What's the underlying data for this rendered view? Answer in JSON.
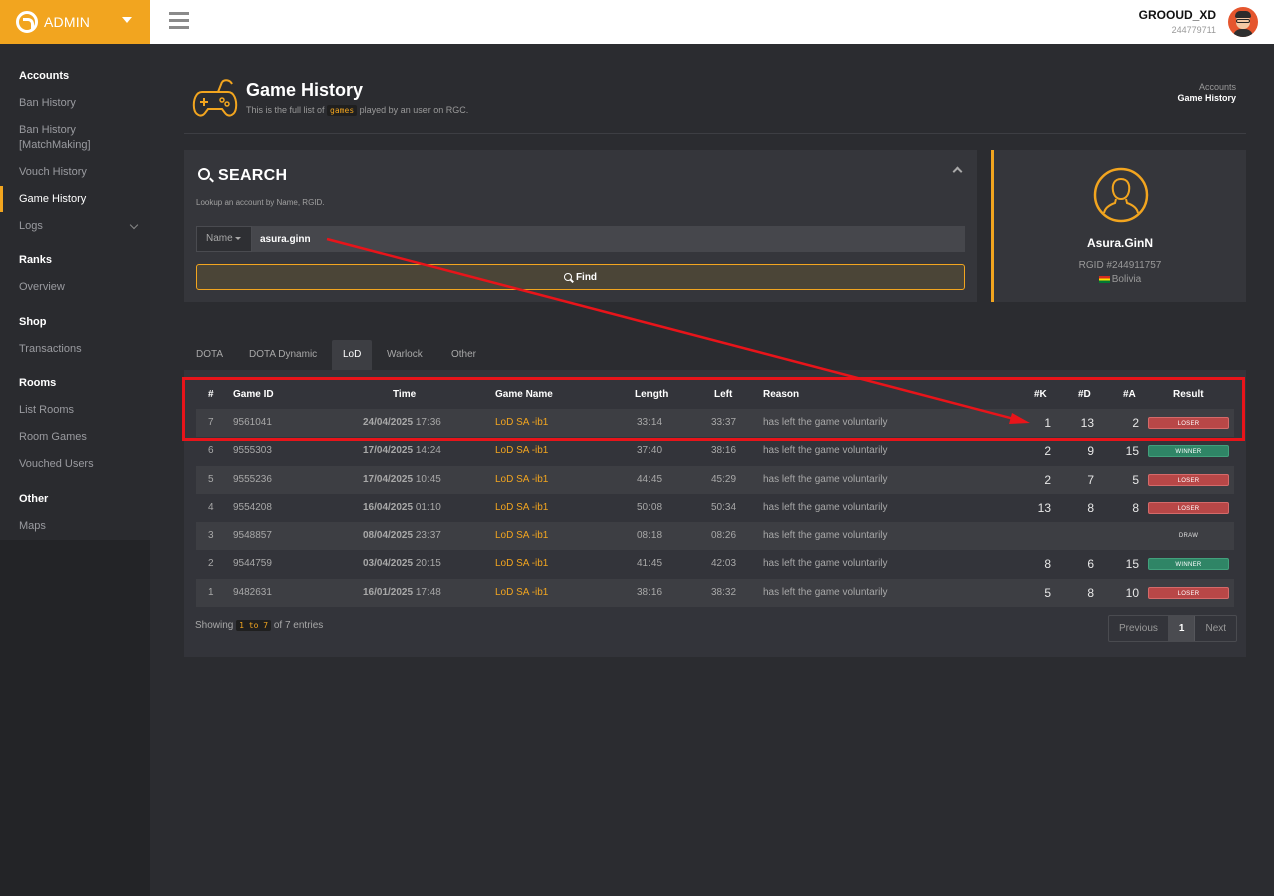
{
  "brand": {
    "label": "ADMIN"
  },
  "user": {
    "name": "GROOUD_XD",
    "id": "244779711"
  },
  "sidebar": {
    "groups": [
      {
        "title": "Accounts",
        "items": [
          "Ban History",
          "Ban History [MatchMaking]",
          "Vouch History",
          "Game History",
          "Logs"
        ]
      },
      {
        "title": "Ranks",
        "items": [
          "Overview"
        ]
      },
      {
        "title": "Shop",
        "items": [
          "Transactions"
        ]
      },
      {
        "title": "Rooms",
        "items": [
          "List Rooms",
          "Room Games",
          "Vouched Users"
        ]
      },
      {
        "title": "Other",
        "items": [
          "Maps"
        ]
      }
    ],
    "active_item": "Game History"
  },
  "page": {
    "title": "Game History",
    "subtitle_before": "This is the full list of",
    "subtitle_code": "games",
    "subtitle_after": "played by an user on RGC."
  },
  "breadcrumb": {
    "parent": "Accounts",
    "current": "Game History"
  },
  "search": {
    "title": "SEARCH",
    "hint": "Lookup an account by Name, RGID.",
    "field_select": "Name",
    "input_value": "asura.ginn",
    "find_label": "Find"
  },
  "profile": {
    "name": "Asura.GinN",
    "rgid": "RGID #244911757",
    "country": "Bolivia"
  },
  "tabs": [
    "DOTA",
    "DOTA Dynamic",
    "LoD",
    "Warlock",
    "Other"
  ],
  "active_tab": "LoD",
  "table": {
    "headers": [
      "#",
      "Game ID",
      "Time",
      "Game Name",
      "Length",
      "Left",
      "Reason",
      "#K",
      "#D",
      "#A",
      "Result"
    ],
    "rows": [
      {
        "n": "7",
        "game_id": "9561041",
        "date": "24/04/2025",
        "clock": "17:36",
        "name": "LoD SA -ib1",
        "length": "33:14",
        "left": "33:37",
        "reason": "has left the game voluntarily",
        "k": "1",
        "d": "13",
        "a": "2",
        "result": "LOSER"
      },
      {
        "n": "6",
        "game_id": "9555303",
        "date": "17/04/2025",
        "clock": "14:24",
        "name": "LoD SA -ib1",
        "length": "37:40",
        "left": "38:16",
        "reason": "has left the game voluntarily",
        "k": "2",
        "d": "9",
        "a": "15",
        "result": "WINNER"
      },
      {
        "n": "5",
        "game_id": "9555236",
        "date": "17/04/2025",
        "clock": "10:45",
        "name": "LoD SA -ib1",
        "length": "44:45",
        "left": "45:29",
        "reason": "has left the game voluntarily",
        "k": "2",
        "d": "7",
        "a": "5",
        "result": "LOSER"
      },
      {
        "n": "4",
        "game_id": "9554208",
        "date": "16/04/2025",
        "clock": "01:10",
        "name": "LoD SA -ib1",
        "length": "50:08",
        "left": "50:34",
        "reason": "has left the game voluntarily",
        "k": "13",
        "d": "8",
        "a": "8",
        "result": "LOSER"
      },
      {
        "n": "3",
        "game_id": "9548857",
        "date": "08/04/2025",
        "clock": "23:37",
        "name": "LoD SA -ib1",
        "length": "08:18",
        "left": "08:26",
        "reason": "has left the game voluntarily",
        "k": "",
        "d": "",
        "a": "",
        "result": "DRAW"
      },
      {
        "n": "2",
        "game_id": "9544759",
        "date": "03/04/2025",
        "clock": "20:15",
        "name": "LoD SA -ib1",
        "length": "41:45",
        "left": "42:03",
        "reason": "has left the game voluntarily",
        "k": "8",
        "d": "6",
        "a": "15",
        "result": "WINNER"
      },
      {
        "n": "1",
        "game_id": "9482631",
        "date": "16/01/2025",
        "clock": "17:48",
        "name": "LoD SA -ib1",
        "length": "38:16",
        "left": "38:32",
        "reason": "has left the game voluntarily",
        "k": "5",
        "d": "8",
        "a": "10",
        "result": "LOSER"
      }
    ]
  },
  "footer": {
    "showing_before": "Showing",
    "showing_range": "1 to 7",
    "showing_after": "of 7 entries"
  },
  "pager": {
    "prev": "Previous",
    "page": "1",
    "next": "Next"
  },
  "colors": {
    "accent": "#f2a51f",
    "loser": "#b84747",
    "winner": "#2f8566",
    "annotation": "#e8141a"
  }
}
